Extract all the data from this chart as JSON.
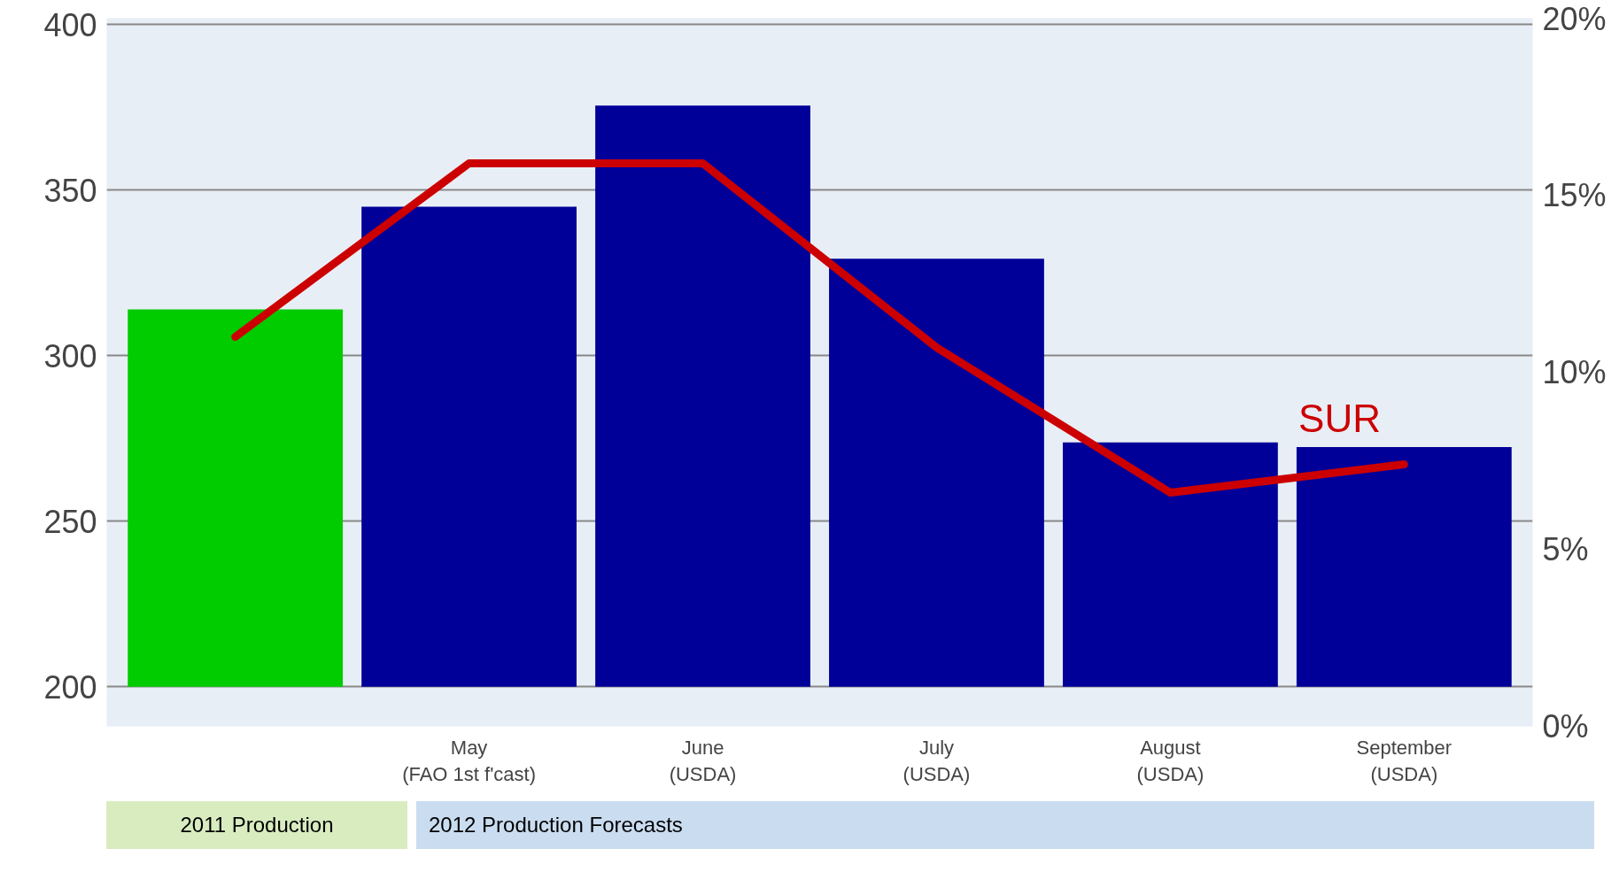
{
  "chart_data": {
    "type": "bar",
    "categories": [
      null,
      "May\n(FAO 1st f'cast)",
      "June\n(USDA)",
      "July\n(USDA)",
      "August\n(USDA)",
      "September\n(USDA)"
    ],
    "values": [
      114,
      145,
      175.6,
      129.3,
      73.8,
      72.4
    ],
    "base": [
      200,
      200,
      200,
      200,
      200,
      200
    ],
    "colors": [
      "#00cc00",
      "#000099",
      "#000099",
      "#000099",
      "#000099",
      "#000099"
    ],
    "series": [
      {
        "name": "SUR",
        "type": "line",
        "axis": "y2",
        "color": "#cc0000",
        "values": [
          11.0,
          15.9,
          15.9,
          10.7,
          6.6,
          7.4
        ]
      }
    ],
    "ylim": [
      188,
      402
    ],
    "yticks": [
      200,
      250,
      300,
      350,
      400
    ],
    "y2lim": [
      0,
      20
    ],
    "y2ticks": [
      {
        "value": 0,
        "label": "0%"
      },
      {
        "value": 5,
        "label": "5%"
      },
      {
        "value": 10,
        "label": "10%"
      },
      {
        "value": 15,
        "label": "15%"
      },
      {
        "value": 20,
        "label": "20%"
      }
    ],
    "grid": "y",
    "legend": false,
    "annotations": [
      "2011 Production",
      "2012 Production Forecasts"
    ]
  }
}
